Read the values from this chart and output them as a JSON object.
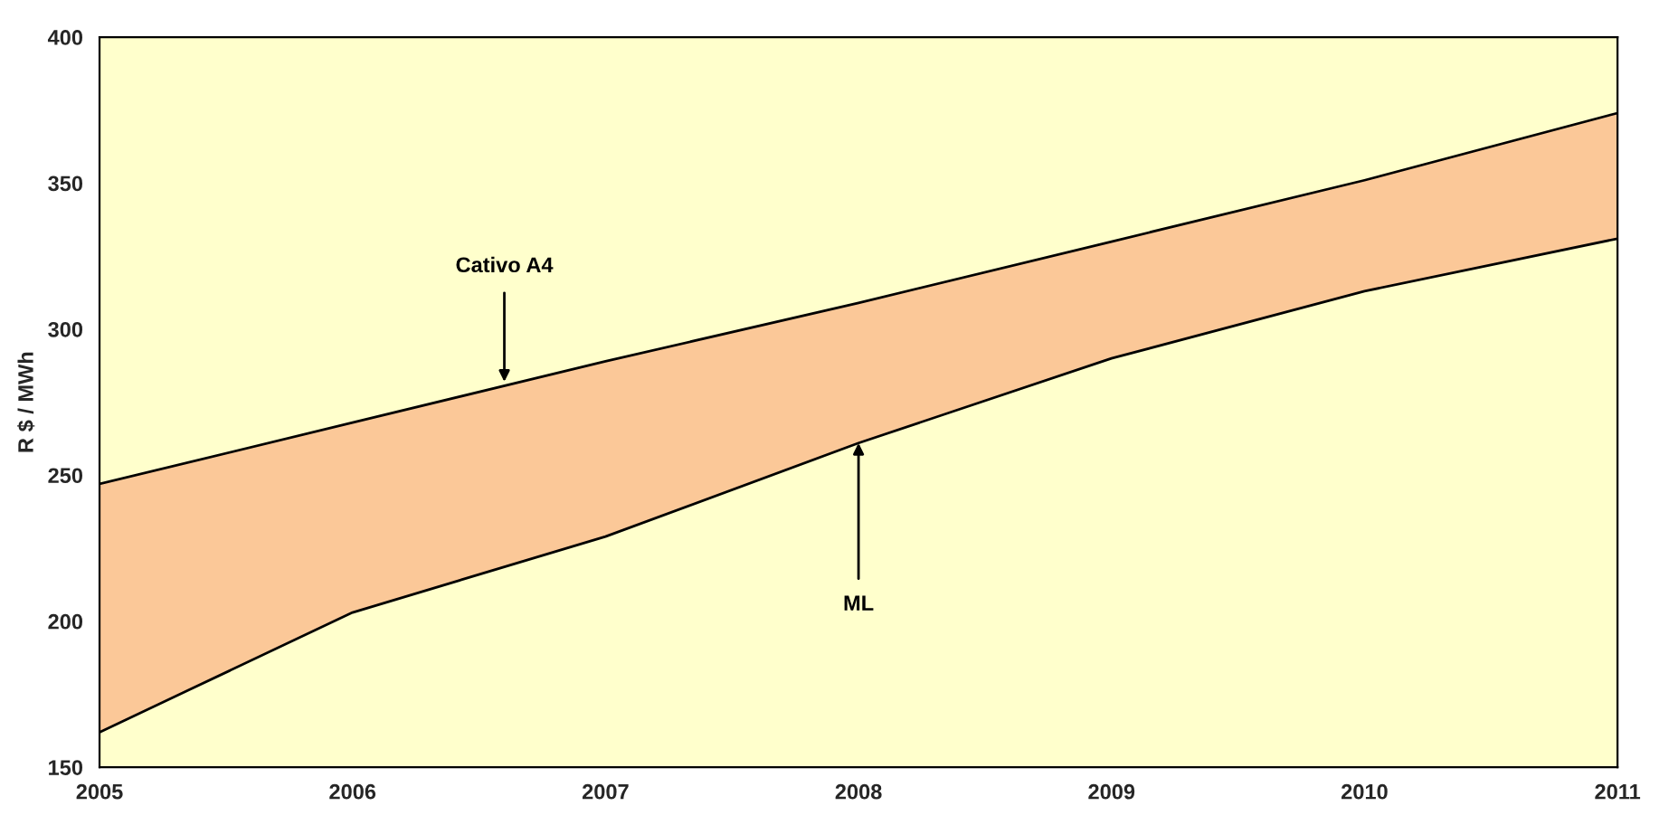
{
  "chart_data": {
    "type": "line",
    "ylabel": "R $ / MWh",
    "x": [
      2005,
      2006,
      2007,
      2008,
      2009,
      2010,
      2011
    ],
    "series": [
      {
        "color": "#000000",
        "values": [
          247,
          268,
          289,
          309,
          330,
          351,
          374
        ],
        "lower": [
          162,
          203,
          229,
          261,
          290,
          313,
          331
        ],
        "upper": [
          247,
          268,
          289,
          309,
          330,
          351,
          374
        ]
      },
      {
        "color": "#000000",
        "values": [
          162,
          203,
          229,
          261,
          290,
          313,
          331
        ]
      }
    ],
    "annotations": [
      {
        "text": "Cativo A4",
        "x": 2006.6,
        "y": 282
      },
      {
        "text": "ML",
        "x": 2008,
        "y": 261
      }
    ],
    "xlim": [
      2005,
      2011
    ],
    "xticks": [
      2005,
      2006,
      2007,
      2008,
      2009,
      2010,
      2011
    ],
    "ylim": [
      150,
      400
    ],
    "yticks": [
      150,
      200,
      250,
      300,
      350,
      400
    ],
    "grid": false,
    "legend": false
  }
}
